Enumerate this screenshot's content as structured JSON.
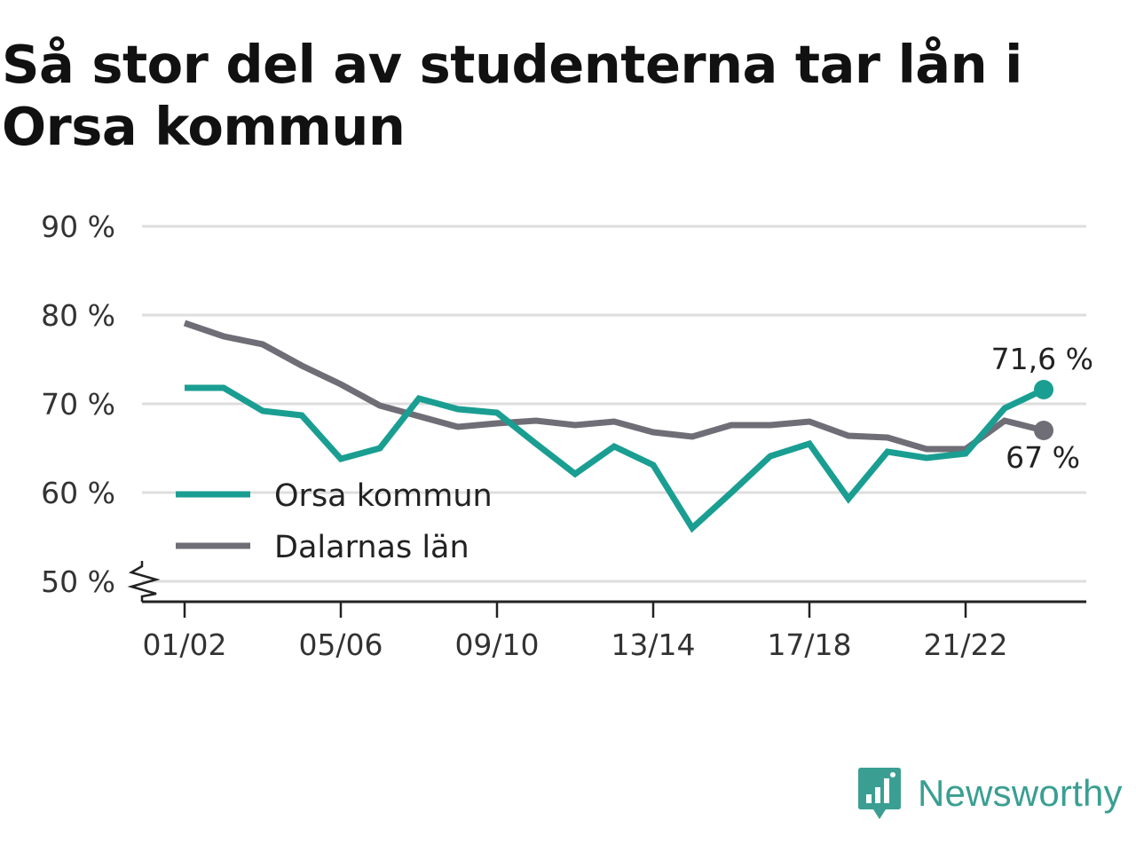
{
  "title": "Så stor del av studenterna tar lån i Orsa kommun",
  "brand": {
    "name": "Newsworthy",
    "icon": "bar-chart-speech-bubble-icon",
    "color": "#3a9f92"
  },
  "chart_data": {
    "type": "line",
    "title": "Så stor del av studenterna tar lån i Orsa kommun",
    "xlabel": "",
    "ylabel": "",
    "x": [
      "01/02",
      "02/03",
      "03/04",
      "04/05",
      "05/06",
      "06/07",
      "07/08",
      "08/09",
      "09/10",
      "10/11",
      "11/12",
      "12/13",
      "13/14",
      "14/15",
      "15/16",
      "16/17",
      "17/18",
      "18/19",
      "19/20",
      "20/21",
      "21/22",
      "22/23",
      "23/24"
    ],
    "x_tick_labels": [
      "01/02",
      "05/06",
      "09/10",
      "13/14",
      "17/18",
      "21/22"
    ],
    "y_tick_labels": [
      "50 %",
      "60 %",
      "70 %",
      "80 %",
      "90 %"
    ],
    "y_ticks": [
      50,
      60,
      70,
      80,
      90
    ],
    "ylim": [
      47.5,
      90
    ],
    "y_axis_break": true,
    "grid": "horizontal",
    "legend_position": "bottom-left",
    "series": [
      {
        "name": "Orsa kommun",
        "color": "#1a9e92",
        "values": [
          71.8,
          71.8,
          69.2,
          68.7,
          63.8,
          65.0,
          70.6,
          69.4,
          69.0,
          65.5,
          62.1,
          65.2,
          63.1,
          56.0,
          60.0,
          64.1,
          65.5,
          59.3,
          64.6,
          63.9,
          64.4,
          69.5,
          71.6
        ],
        "end_label": "71,6 %"
      },
      {
        "name": "Dalarnas län",
        "color": "#6f6e76",
        "values": [
          79.1,
          77.6,
          76.7,
          74.3,
          72.2,
          69.8,
          68.6,
          67.4,
          67.8,
          68.1,
          67.6,
          68.0,
          66.8,
          66.3,
          67.6,
          67.6,
          68.0,
          66.4,
          66.2,
          64.9,
          64.9,
          68.1,
          67.0
        ],
        "end_label": "67 %"
      }
    ]
  }
}
